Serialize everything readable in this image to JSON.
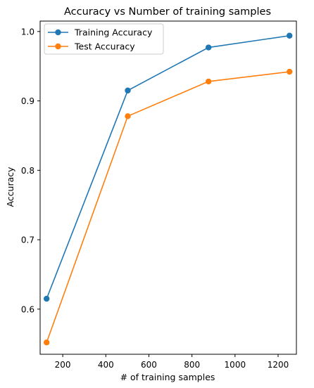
{
  "chart_data": {
    "type": "line",
    "title": "Accuracy vs Number of training samples",
    "xlabel": "# of training samples",
    "ylabel": "Accuracy",
    "xlim": [
      95,
      1285
    ],
    "ylim": [
      0.535,
      1.015
    ],
    "xticks": [
      200,
      400,
      600,
      800,
      1000,
      1200
    ],
    "yticks": [
      0.6,
      0.7,
      0.8,
      0.9,
      1.0
    ],
    "ytick_labels": [
      "0.6",
      "0.7",
      "0.8",
      "0.9",
      "1.0"
    ],
    "grid": false,
    "legend_position": "top-left",
    "x": [
      125,
      502,
      877,
      1253
    ],
    "series": [
      {
        "name": "Training Accuracy",
        "color": "#1f77b4",
        "marker": "circle",
        "values": [
          0.615,
          0.915,
          0.977,
          0.994
        ]
      },
      {
        "name": "Test Accuracy",
        "color": "#ff7f0e",
        "marker": "circle",
        "values": [
          0.552,
          0.878,
          0.928,
          0.942
        ]
      }
    ]
  }
}
